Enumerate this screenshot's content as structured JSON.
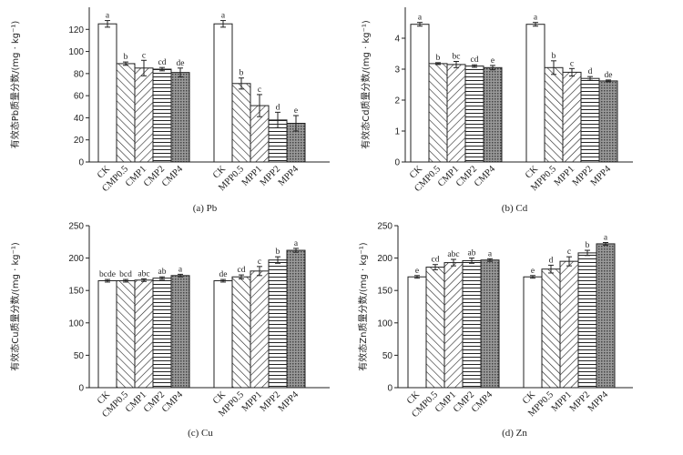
{
  "figure": {
    "colors": {
      "axis": "#222222",
      "bar_stroke": "#222222",
      "bar_fill": "#ffffff",
      "dotted_fill": "#8a8a8a"
    },
    "patterns": [
      "blank",
      "back-diag",
      "fwd-diag",
      "horiz",
      "dotted"
    ]
  },
  "chart_data": [
    {
      "id": "pb",
      "type": "bar",
      "caption": "(a) Pb",
      "ylabel": "有效态Pb质量分数/(mg · kg⁻¹)",
      "ylim": [
        0,
        140
      ],
      "yticks": [
        0,
        20,
        40,
        60,
        80,
        100,
        120
      ],
      "categories": [
        "CK",
        "CMP0.5",
        "CMP1",
        "CMP2",
        "CMP4",
        "CK",
        "MPP0.5",
        "MPP1",
        "MPP2",
        "MPP4"
      ],
      "values": [
        125,
        89,
        85,
        84,
        81,
        125,
        71,
        51,
        38,
        35
      ],
      "errors": [
        3,
        1.5,
        7,
        1.5,
        4,
        3,
        5,
        10,
        7,
        7
      ],
      "labels": [
        "a",
        "b",
        "c",
        "cd",
        "de",
        "a",
        "b",
        "c",
        "d",
        "e"
      ]
    },
    {
      "id": "cd",
      "type": "bar",
      "caption": "(b) Cd",
      "ylabel": "有效态Cd质量分数/(mg · kg⁻¹)",
      "ylim": [
        0,
        5
      ],
      "yticks": [
        0,
        1,
        2,
        3,
        4
      ],
      "categories": [
        "CK",
        "CMP0.5",
        "CMP1",
        "CMP2",
        "CMP4",
        "CK",
        "MPP0.5",
        "MPP1",
        "MPP2",
        "MPP4"
      ],
      "values": [
        4.45,
        3.18,
        3.15,
        3.1,
        3.05,
        4.45,
        3.05,
        2.9,
        2.7,
        2.62
      ],
      "errors": [
        0.06,
        0.03,
        0.1,
        0.04,
        0.07,
        0.06,
        0.22,
        0.12,
        0.06,
        0.03
      ],
      "labels": [
        "a",
        "b",
        "bc",
        "cd",
        "e",
        "a",
        "b",
        "c",
        "d",
        "de"
      ]
    },
    {
      "id": "cu",
      "type": "bar",
      "caption": "(c) Cu",
      "ylabel": "有效态Cu质量分数/(mg · kg⁻¹)",
      "ylim": [
        0,
        250
      ],
      "yticks": [
        0,
        50,
        100,
        150,
        200,
        250
      ],
      "categories": [
        "CK",
        "CMP0.5",
        "CMP1",
        "CMP2",
        "CMP4",
        "CK",
        "MPP0.5",
        "MPP1",
        "MPP2",
        "MPP4"
      ],
      "values": [
        165,
        165,
        166,
        169,
        173,
        165,
        171,
        180,
        197,
        212
      ],
      "errors": [
        2,
        2,
        2,
        2,
        2,
        2,
        3,
        7,
        5,
        3
      ],
      "labels": [
        "bcde",
        "bcd",
        "abc",
        "ab",
        "a",
        "de",
        "cd",
        "c",
        "b",
        "a"
      ]
    },
    {
      "id": "zn",
      "type": "bar",
      "caption": "(d) Zn",
      "ylabel": "有效态Zn质量分数/(mg · kg⁻¹)",
      "ylim": [
        0,
        250
      ],
      "yticks": [
        0,
        50,
        100,
        150,
        200,
        250
      ],
      "categories": [
        "CK",
        "CMP0.5",
        "CMP1",
        "CMP2",
        "CMP4",
        "CK",
        "MPP0.5",
        "MPP1",
        "MPP2",
        "MPP4"
      ],
      "values": [
        171,
        186,
        193,
        196,
        197,
        171,
        183,
        195,
        208,
        222
      ],
      "errors": [
        2,
        4,
        5,
        4,
        2,
        2,
        6,
        7,
        4,
        2
      ],
      "labels": [
        "e",
        "cd",
        "abc",
        "ab",
        "a",
        "e",
        "d",
        "c",
        "b",
        "a"
      ]
    }
  ]
}
